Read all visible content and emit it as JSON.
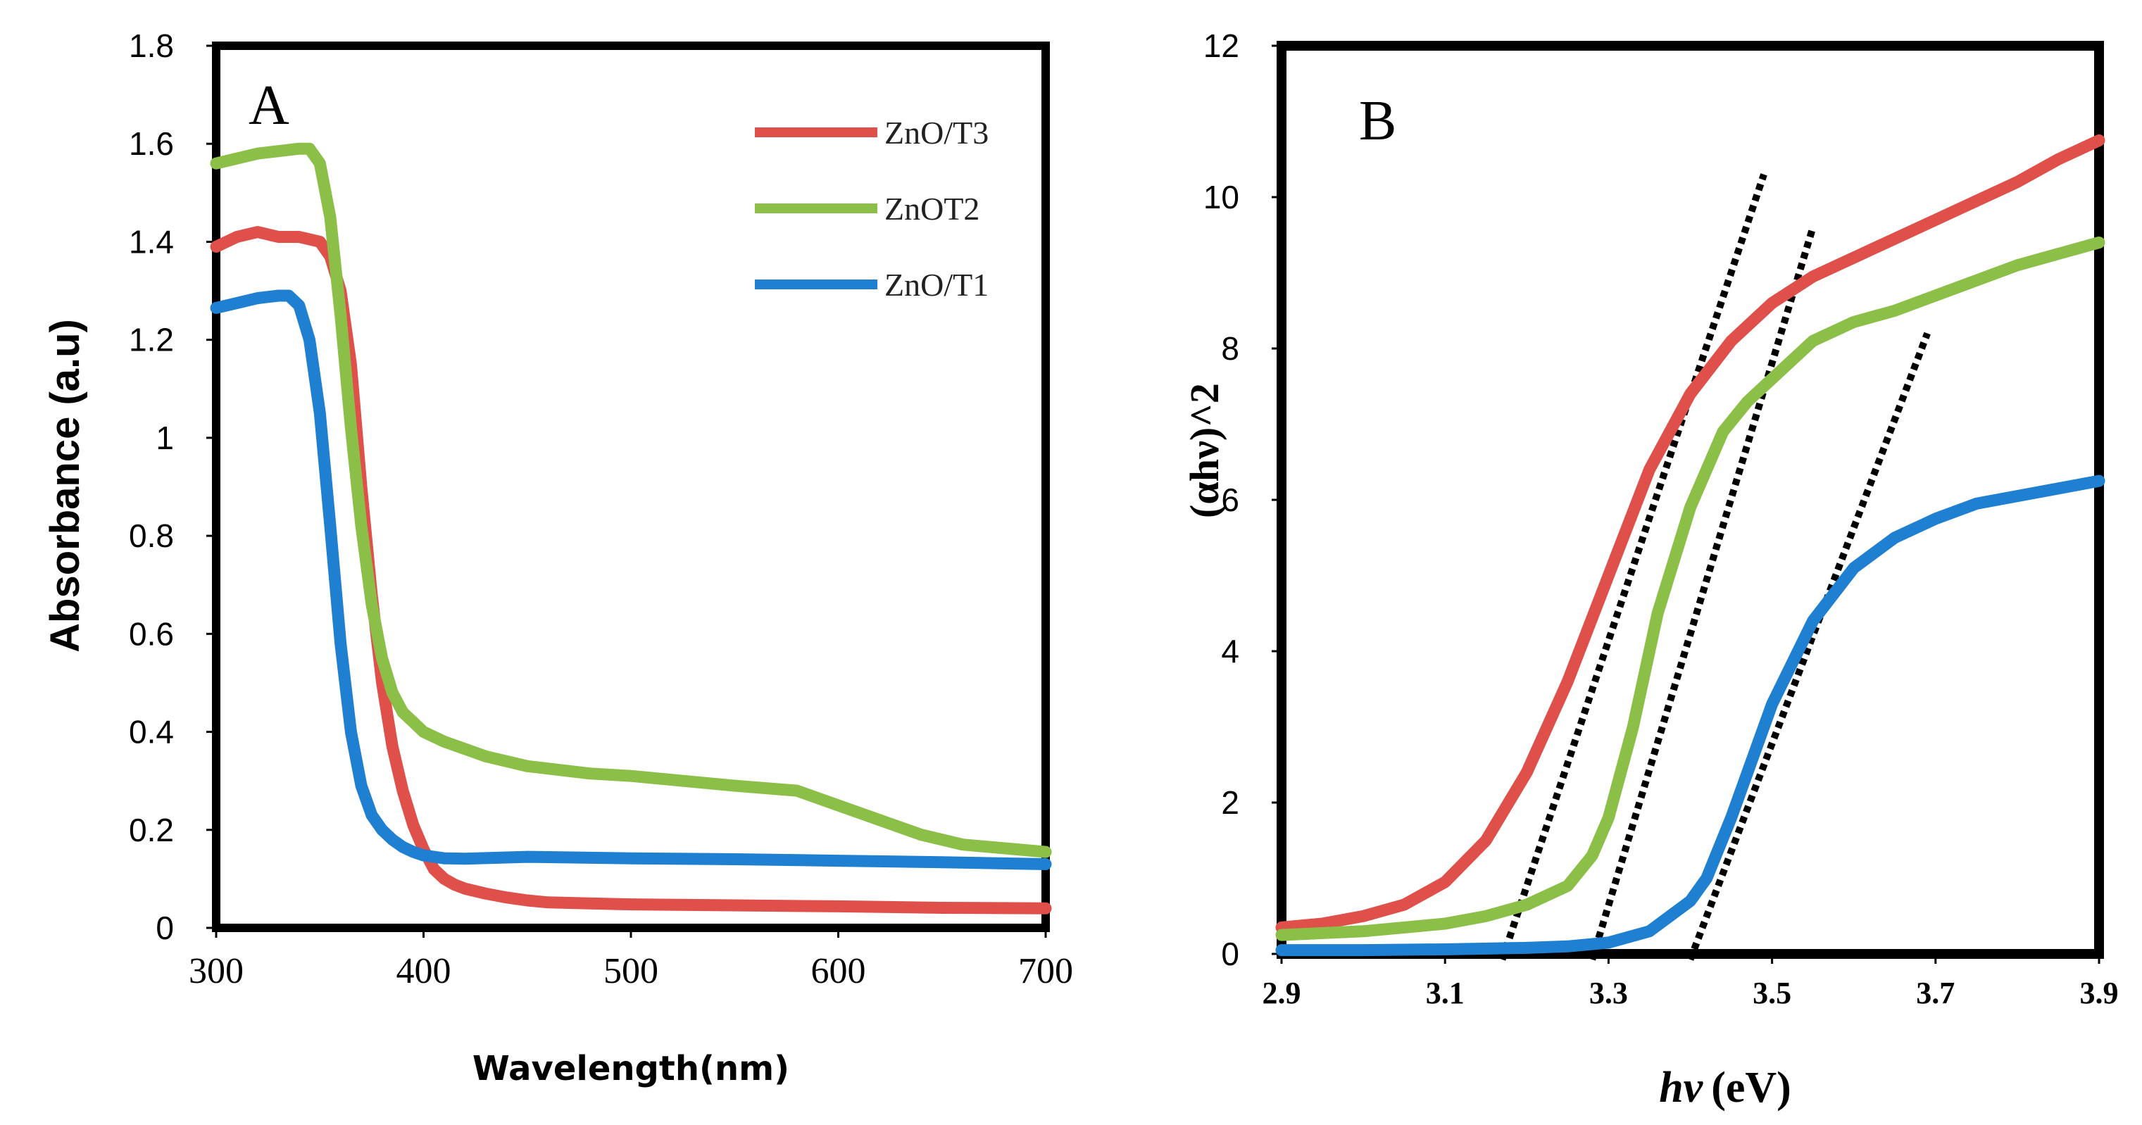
{
  "colors": {
    "red": "#e0504a",
    "green": "#8bbf48",
    "blue": "#1f7fd1",
    "fit": "#000000"
  },
  "chart_data": [
    {
      "type": "line",
      "panel_label": "A",
      "title": "",
      "xlabel": "Wavelength(nm)",
      "ylabel": "Absorbance (a.u)",
      "xlim": [
        300,
        700
      ],
      "ylim": [
        0,
        1.8
      ],
      "xticks": [
        "300",
        "400",
        "500",
        "600",
        "700"
      ],
      "yticks": [
        "0",
        "0.2",
        "0.4",
        "0.6",
        "0.8",
        "1",
        "1.2",
        "1.4",
        "1.6",
        "1.8"
      ],
      "legend_position": "top-right",
      "series": [
        {
          "name": "ZnO/T3",
          "color": "#e0504a",
          "x": [
            300,
            310,
            320,
            330,
            340,
            350,
            355,
            360,
            365,
            370,
            375,
            380,
            385,
            390,
            395,
            400,
            405,
            410,
            415,
            420,
            430,
            440,
            450,
            460,
            480,
            500,
            550,
            600,
            650,
            700
          ],
          "y": [
            1.39,
            1.41,
            1.42,
            1.41,
            1.41,
            1.4,
            1.37,
            1.3,
            1.15,
            0.9,
            0.68,
            0.5,
            0.37,
            0.28,
            0.21,
            0.16,
            0.12,
            0.1,
            0.088,
            0.08,
            0.07,
            0.062,
            0.056,
            0.052,
            0.05,
            0.048,
            0.046,
            0.044,
            0.041,
            0.04
          ]
        },
        {
          "name": "ZnOT2",
          "color": "#8bbf48",
          "x": [
            300,
            310,
            320,
            330,
            340,
            345,
            350,
            355,
            360,
            365,
            370,
            375,
            380,
            385,
            390,
            395,
            400,
            410,
            420,
            430,
            450,
            480,
            500,
            550,
            580,
            600,
            620,
            640,
            660,
            700
          ],
          "y": [
            1.56,
            1.57,
            1.58,
            1.585,
            1.59,
            1.59,
            1.56,
            1.45,
            1.25,
            1.02,
            0.82,
            0.66,
            0.55,
            0.48,
            0.44,
            0.42,
            0.4,
            0.38,
            0.365,
            0.35,
            0.33,
            0.315,
            0.31,
            0.29,
            0.28,
            0.25,
            0.22,
            0.19,
            0.17,
            0.155
          ]
        },
        {
          "name": "ZnO/T1",
          "color": "#1f7fd1",
          "x": [
            300,
            310,
            320,
            330,
            335,
            340,
            345,
            350,
            355,
            360,
            365,
            370,
            375,
            380,
            385,
            390,
            395,
            400,
            405,
            410,
            420,
            450,
            500,
            550,
            600,
            650,
            700
          ],
          "y": [
            1.265,
            1.275,
            1.285,
            1.29,
            1.29,
            1.27,
            1.2,
            1.05,
            0.82,
            0.58,
            0.4,
            0.29,
            0.23,
            0.2,
            0.18,
            0.165,
            0.155,
            0.148,
            0.145,
            0.142,
            0.141,
            0.145,
            0.142,
            0.14,
            0.137,
            0.134,
            0.13
          ]
        }
      ]
    },
    {
      "type": "line",
      "panel_label": "B",
      "title": "",
      "xlabel_italic": "hν",
      "xlabel_unit": "(eV)",
      "ylabel": "(αhν)^2",
      "xlim": [
        2.9,
        3.9
      ],
      "ylim": [
        0,
        12
      ],
      "xticks": [
        "2.9",
        "3.1",
        "3.3",
        "3.5",
        "3.7",
        "3.9"
      ],
      "yticks": [
        "0",
        "2",
        "4",
        "6",
        "8",
        "10",
        "12"
      ],
      "series": [
        {
          "name": "red",
          "color": "#e0504a",
          "x": [
            2.9,
            2.95,
            3.0,
            3.05,
            3.1,
            3.15,
            3.2,
            3.25,
            3.3,
            3.35,
            3.4,
            3.45,
            3.5,
            3.55,
            3.6,
            3.65,
            3.7,
            3.75,
            3.8,
            3.85,
            3.9
          ],
          "y": [
            0.35,
            0.4,
            0.5,
            0.65,
            0.95,
            1.5,
            2.4,
            3.6,
            5.0,
            6.4,
            7.4,
            8.1,
            8.6,
            8.95,
            9.2,
            9.45,
            9.7,
            9.95,
            10.2,
            10.5,
            10.75
          ]
        },
        {
          "name": "green",
          "color": "#8bbf48",
          "x": [
            2.9,
            3.0,
            3.1,
            3.15,
            3.2,
            3.25,
            3.28,
            3.3,
            3.33,
            3.36,
            3.4,
            3.44,
            3.47,
            3.5,
            3.55,
            3.6,
            3.65,
            3.7,
            3.75,
            3.8,
            3.85,
            3.9
          ],
          "y": [
            0.25,
            0.3,
            0.4,
            0.5,
            0.65,
            0.9,
            1.3,
            1.8,
            3.0,
            4.5,
            5.9,
            6.9,
            7.3,
            7.6,
            8.1,
            8.35,
            8.5,
            8.7,
            8.9,
            9.1,
            9.25,
            9.4
          ]
        },
        {
          "name": "blue",
          "color": "#1f7fd1",
          "x": [
            2.9,
            3.0,
            3.1,
            3.2,
            3.25,
            3.3,
            3.35,
            3.4,
            3.42,
            3.45,
            3.5,
            3.55,
            3.6,
            3.65,
            3.7,
            3.75,
            3.8,
            3.85,
            3.9
          ],
          "y": [
            0.05,
            0.05,
            0.06,
            0.08,
            0.1,
            0.15,
            0.3,
            0.7,
            1.0,
            1.8,
            3.3,
            4.4,
            5.1,
            5.5,
            5.75,
            5.95,
            6.05,
            6.15,
            6.25
          ]
        }
      ],
      "fit_lines": [
        {
          "name": "red-fit",
          "x": [
            3.17,
            3.49
          ],
          "y": [
            0,
            10.3
          ]
        },
        {
          "name": "green-fit",
          "x": [
            3.28,
            3.55
          ],
          "y": [
            0,
            9.6
          ]
        },
        {
          "name": "blue-fit",
          "x": [
            3.4,
            3.69
          ],
          "y": [
            0,
            8.2
          ]
        }
      ]
    }
  ]
}
